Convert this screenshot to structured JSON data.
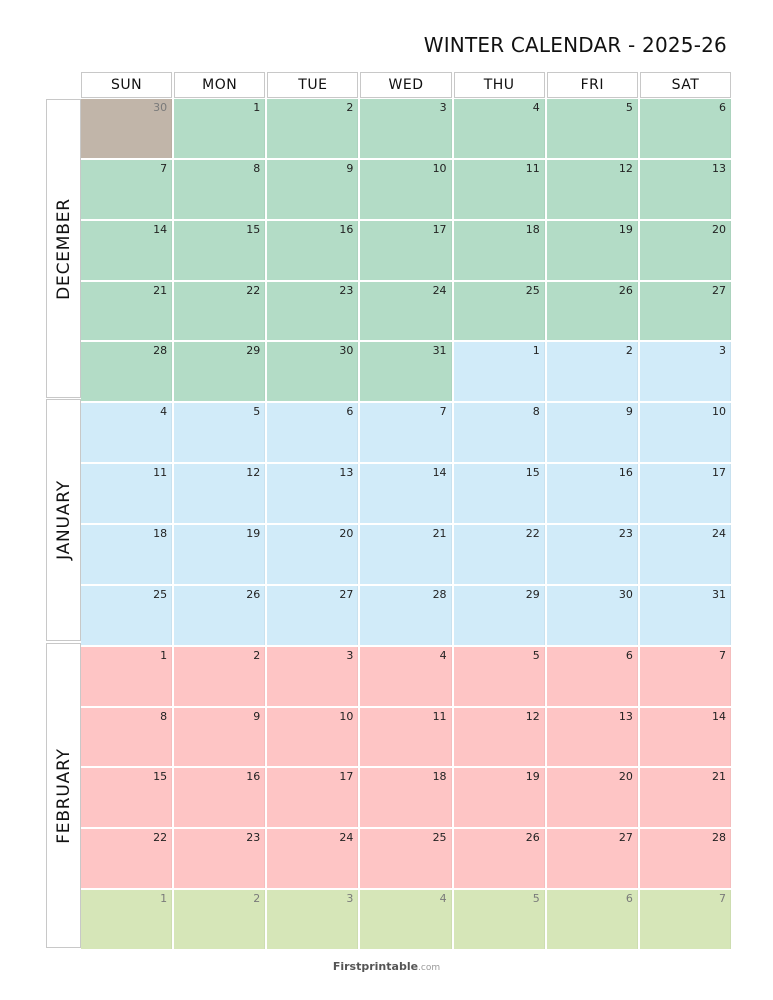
{
  "title": "WINTER CALENDAR - 2025-26",
  "day_headers": [
    "SUN",
    "MON",
    "TUE",
    "WED",
    "THU",
    "FRI",
    "SAT"
  ],
  "months": [
    {
      "name": "DECEMBER",
      "weeks": 5
    },
    {
      "name": "JANUARY",
      "weeks": 4
    },
    {
      "name": "FEBRUARY",
      "weeks": 5
    }
  ],
  "colors": {
    "december": "#b3dcc6",
    "january": "#d1ebf9",
    "february": "#fec5c5",
    "prev_month": "#c1b5a9",
    "next_month": "#d6e6b8"
  },
  "weeks": [
    [
      {
        "d": "30",
        "m": "prev"
      },
      {
        "d": "1",
        "m": "dec"
      },
      {
        "d": "2",
        "m": "dec"
      },
      {
        "d": "3",
        "m": "dec"
      },
      {
        "d": "4",
        "m": "dec"
      },
      {
        "d": "5",
        "m": "dec"
      },
      {
        "d": "6",
        "m": "dec"
      }
    ],
    [
      {
        "d": "7",
        "m": "dec"
      },
      {
        "d": "8",
        "m": "dec"
      },
      {
        "d": "9",
        "m": "dec"
      },
      {
        "d": "10",
        "m": "dec"
      },
      {
        "d": "11",
        "m": "dec"
      },
      {
        "d": "12",
        "m": "dec"
      },
      {
        "d": "13",
        "m": "dec"
      }
    ],
    [
      {
        "d": "14",
        "m": "dec"
      },
      {
        "d": "15",
        "m": "dec"
      },
      {
        "d": "16",
        "m": "dec"
      },
      {
        "d": "17",
        "m": "dec"
      },
      {
        "d": "18",
        "m": "dec"
      },
      {
        "d": "19",
        "m": "dec"
      },
      {
        "d": "20",
        "m": "dec"
      }
    ],
    [
      {
        "d": "21",
        "m": "dec"
      },
      {
        "d": "22",
        "m": "dec"
      },
      {
        "d": "23",
        "m": "dec"
      },
      {
        "d": "24",
        "m": "dec"
      },
      {
        "d": "25",
        "m": "dec"
      },
      {
        "d": "26",
        "m": "dec"
      },
      {
        "d": "27",
        "m": "dec"
      }
    ],
    [
      {
        "d": "28",
        "m": "dec"
      },
      {
        "d": "29",
        "m": "dec"
      },
      {
        "d": "30",
        "m": "dec"
      },
      {
        "d": "31",
        "m": "dec"
      },
      {
        "d": "1",
        "m": "jan"
      },
      {
        "d": "2",
        "m": "jan"
      },
      {
        "d": "3",
        "m": "jan"
      }
    ],
    [
      {
        "d": "4",
        "m": "jan"
      },
      {
        "d": "5",
        "m": "jan"
      },
      {
        "d": "6",
        "m": "jan"
      },
      {
        "d": "7",
        "m": "jan"
      },
      {
        "d": "8",
        "m": "jan"
      },
      {
        "d": "9",
        "m": "jan"
      },
      {
        "d": "10",
        "m": "jan"
      }
    ],
    [
      {
        "d": "11",
        "m": "jan"
      },
      {
        "d": "12",
        "m": "jan"
      },
      {
        "d": "13",
        "m": "jan"
      },
      {
        "d": "14",
        "m": "jan"
      },
      {
        "d": "15",
        "m": "jan"
      },
      {
        "d": "16",
        "m": "jan"
      },
      {
        "d": "17",
        "m": "jan"
      }
    ],
    [
      {
        "d": "18",
        "m": "jan"
      },
      {
        "d": "19",
        "m": "jan"
      },
      {
        "d": "20",
        "m": "jan"
      },
      {
        "d": "21",
        "m": "jan"
      },
      {
        "d": "22",
        "m": "jan"
      },
      {
        "d": "23",
        "m": "jan"
      },
      {
        "d": "24",
        "m": "jan"
      }
    ],
    [
      {
        "d": "25",
        "m": "jan"
      },
      {
        "d": "26",
        "m": "jan"
      },
      {
        "d": "27",
        "m": "jan"
      },
      {
        "d": "28",
        "m": "jan"
      },
      {
        "d": "29",
        "m": "jan"
      },
      {
        "d": "30",
        "m": "jan"
      },
      {
        "d": "31",
        "m": "jan"
      }
    ],
    [
      {
        "d": "1",
        "m": "feb"
      },
      {
        "d": "2",
        "m": "feb"
      },
      {
        "d": "3",
        "m": "feb"
      },
      {
        "d": "4",
        "m": "feb"
      },
      {
        "d": "5",
        "m": "feb"
      },
      {
        "d": "6",
        "m": "feb"
      },
      {
        "d": "7",
        "m": "feb"
      }
    ],
    [
      {
        "d": "8",
        "m": "feb"
      },
      {
        "d": "9",
        "m": "feb"
      },
      {
        "d": "10",
        "m": "feb"
      },
      {
        "d": "11",
        "m": "feb"
      },
      {
        "d": "12",
        "m": "feb"
      },
      {
        "d": "13",
        "m": "feb"
      },
      {
        "d": "14",
        "m": "feb"
      }
    ],
    [
      {
        "d": "15",
        "m": "feb"
      },
      {
        "d": "16",
        "m": "feb"
      },
      {
        "d": "17",
        "m": "feb"
      },
      {
        "d": "18",
        "m": "feb"
      },
      {
        "d": "19",
        "m": "feb"
      },
      {
        "d": "20",
        "m": "feb"
      },
      {
        "d": "21",
        "m": "feb"
      }
    ],
    [
      {
        "d": "22",
        "m": "feb"
      },
      {
        "d": "23",
        "m": "feb"
      },
      {
        "d": "24",
        "m": "feb"
      },
      {
        "d": "25",
        "m": "feb"
      },
      {
        "d": "26",
        "m": "feb"
      },
      {
        "d": "27",
        "m": "feb"
      },
      {
        "d": "28",
        "m": "feb"
      }
    ],
    [
      {
        "d": "1",
        "m": "next"
      },
      {
        "d": "2",
        "m": "next"
      },
      {
        "d": "3",
        "m": "next"
      },
      {
        "d": "4",
        "m": "next"
      },
      {
        "d": "5",
        "m": "next"
      },
      {
        "d": "6",
        "m": "next"
      },
      {
        "d": "7",
        "m": "next"
      }
    ]
  ],
  "footer": {
    "brand": "Firstprintable",
    "domain": ".com"
  }
}
